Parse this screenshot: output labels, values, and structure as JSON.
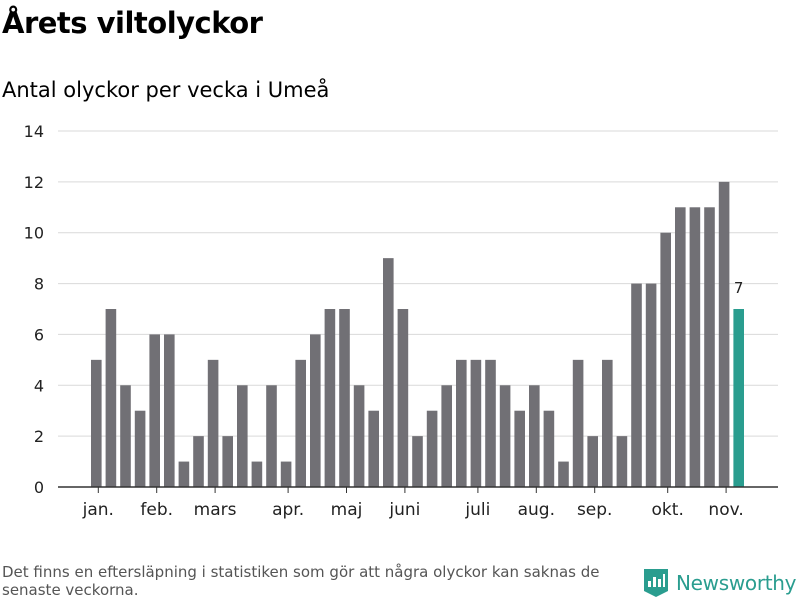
{
  "chart_data": {
    "type": "bar",
    "title": "Årets viltolyckor",
    "subtitle": "Antal olyckor per vecka i Umeå",
    "xlabel": "",
    "ylabel": "",
    "ylim": [
      0,
      14
    ],
    "yticks": [
      0,
      2,
      4,
      6,
      8,
      10,
      12,
      14
    ],
    "grid": true,
    "values": [
      5,
      7,
      4,
      3,
      6,
      6,
      1,
      2,
      5,
      2,
      4,
      1,
      4,
      1,
      5,
      6,
      7,
      7,
      4,
      3,
      9,
      7,
      2,
      3,
      4,
      5,
      5,
      5,
      4,
      3,
      4,
      3,
      1,
      5,
      2,
      5,
      2,
      8,
      8,
      10,
      11,
      11,
      11,
      12,
      7
    ],
    "month_labels": [
      {
        "label": "jan.",
        "index": 0.5
      },
      {
        "label": "feb.",
        "index": 4.5
      },
      {
        "label": "mars",
        "index": 8.5
      },
      {
        "label": "apr.",
        "index": 13.5
      },
      {
        "label": "maj",
        "index": 17.5
      },
      {
        "label": "juni",
        "index": 21.5
      },
      {
        "label": "juli",
        "index": 26.5
      },
      {
        "label": "aug.",
        "index": 30.5
      },
      {
        "label": "sep.",
        "index": 34.5
      },
      {
        "label": "okt.",
        "index": 39.5
      },
      {
        "label": "nov.",
        "index": 43.5
      }
    ],
    "highlight": {
      "index": 44,
      "label": "7"
    },
    "colors": {
      "bar": "#717075",
      "highlight": "#2a9d8f",
      "grid": "#d9d9d9",
      "axis": "#333333",
      "text": "#222222"
    }
  },
  "footnote": "Det finns en eftersläpning i statistiken som gör att några olyckor kan saknas de senaste veckorna.",
  "brand": {
    "name": "Newsworthy",
    "icon": "bar-chart-logo-icon"
  }
}
